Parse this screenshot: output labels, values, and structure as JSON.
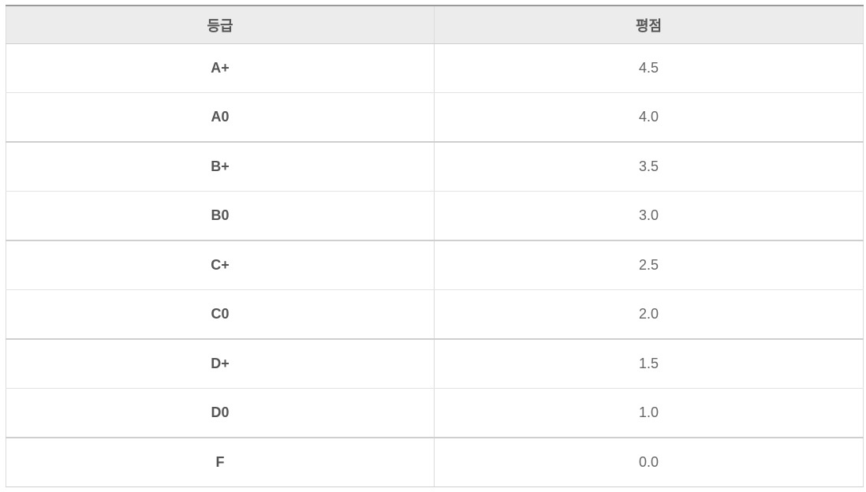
{
  "table": {
    "headers": [
      "등급",
      "평점"
    ],
    "rows": [
      {
        "grade": "A+",
        "score": "4.5"
      },
      {
        "grade": "A0",
        "score": "4.0"
      },
      {
        "grade": "B+",
        "score": "3.5"
      },
      {
        "grade": "B0",
        "score": "3.0"
      },
      {
        "grade": "C+",
        "score": "2.5"
      },
      {
        "grade": "C0",
        "score": "2.0"
      },
      {
        "grade": "D+",
        "score": "1.5"
      },
      {
        "grade": "D0",
        "score": "1.0"
      },
      {
        "grade": "F",
        "score": "0.0"
      }
    ]
  },
  "colors": {
    "header_bg": "#ececec",
    "header_text": "#555555",
    "cell_text": "#666666",
    "border": "#dcdcdc"
  }
}
